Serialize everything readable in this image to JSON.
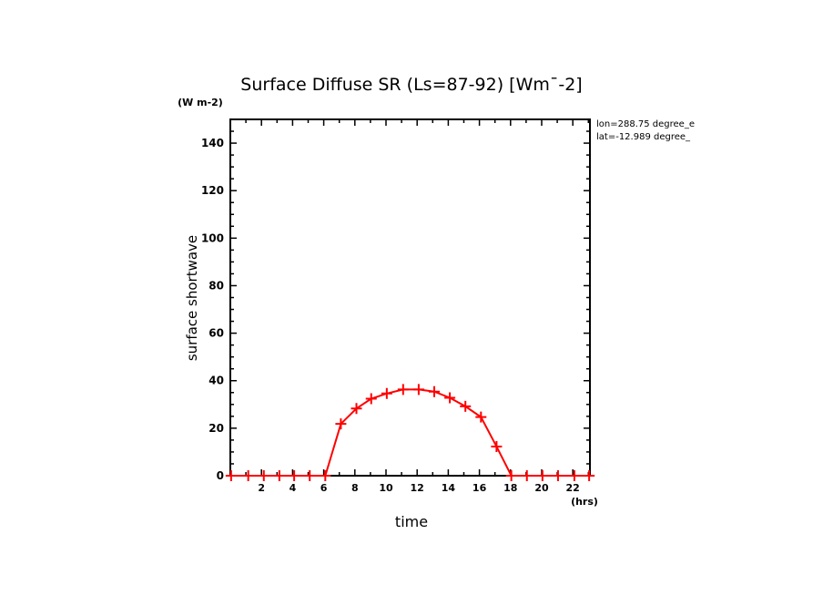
{
  "chart_data": {
    "type": "line",
    "title": "Surface Diffuse SR (Ls=87-92) [Wm¯-2]",
    "xlabel": "time",
    "ylabel": "surface shortwave",
    "x_units": "(hrs)",
    "y_units": "(W m-2)",
    "xlim": [
      0,
      23.1
    ],
    "ylim": [
      0,
      150
    ],
    "xticks": [
      2,
      4,
      6,
      8,
      10,
      12,
      14,
      16,
      18,
      20,
      22
    ],
    "yticks": [
      0,
      20,
      40,
      60,
      80,
      100,
      120,
      140
    ],
    "annotations": [
      "lon=288.75 degree_e",
      "lat=-12.989 degree_"
    ],
    "series": [
      {
        "name": "surface shortwave",
        "color": "#ff0000",
        "marker": "+",
        "x": [
          0.05,
          1.15,
          2.15,
          3.15,
          4.1,
          5.1,
          6.1,
          7.1,
          8.1,
          9.05,
          10.05,
          11.1,
          12.1,
          13.1,
          14.1,
          15.1,
          16.1,
          17.1,
          18.05,
          19.05,
          20.05,
          21.05,
          22.1,
          23.05
        ],
        "y": [
          0,
          0,
          0,
          0,
          0,
          0,
          0,
          21.8,
          28.3,
          32.4,
          34.6,
          36.3,
          36.3,
          35.4,
          32.8,
          29.2,
          24.7,
          12.3,
          0,
          0,
          0,
          0,
          0,
          0
        ]
      }
    ]
  }
}
